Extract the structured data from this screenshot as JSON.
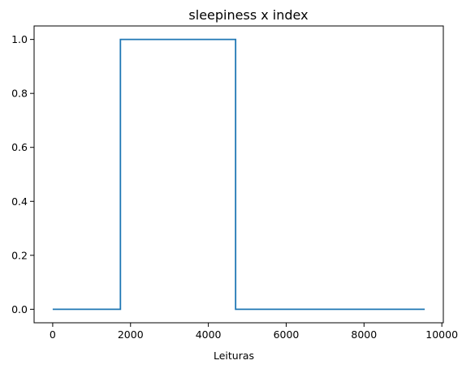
{
  "chart_data": {
    "type": "line",
    "title": "sleepiness x index",
    "xlabel": "Leituras",
    "ylabel": "",
    "xlim": [
      -478,
      10038
    ],
    "ylim": [
      -0.05,
      1.05
    ],
    "x_ticks": [
      0,
      2000,
      4000,
      6000,
      8000,
      10000
    ],
    "x_tick_labels": [
      "0",
      "2000",
      "4000",
      "6000",
      "8000",
      "10000"
    ],
    "y_ticks": [
      0.0,
      0.2,
      0.4,
      0.6,
      0.8,
      1.0
    ],
    "y_tick_labels": [
      "0.0",
      "0.2",
      "0.4",
      "0.6",
      "0.8",
      "1.0"
    ],
    "grid": false,
    "series": [
      {
        "color": "#1f77b4",
        "points": [
          [
            0,
            0
          ],
          [
            1740,
            0
          ],
          [
            1740,
            1
          ],
          [
            4700,
            1
          ],
          [
            4700,
            0
          ],
          [
            9560,
            0
          ]
        ]
      }
    ]
  }
}
